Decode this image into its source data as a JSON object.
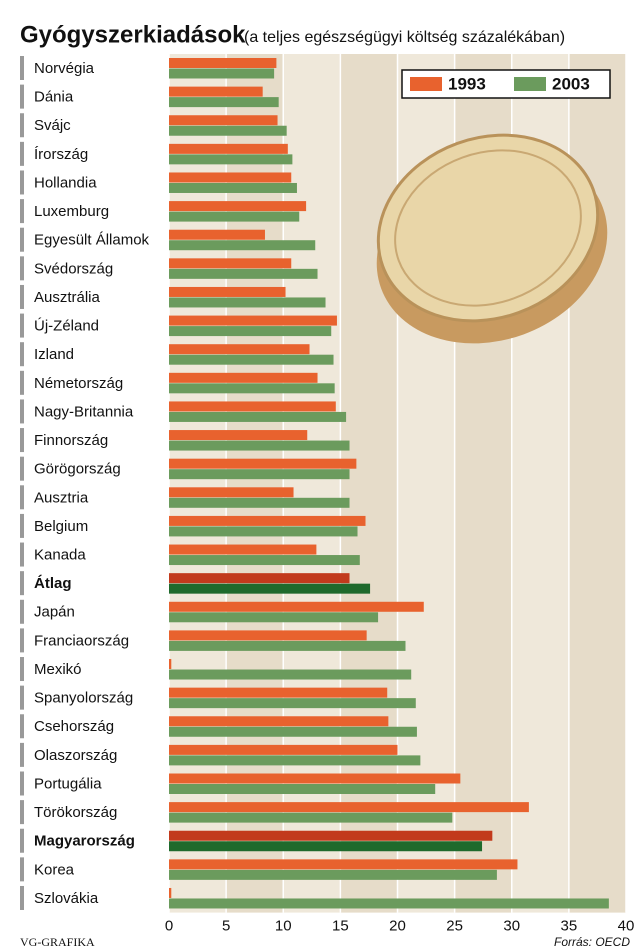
{
  "chart_data": {
    "type": "bar",
    "orientation": "horizontal",
    "title": "Gyógyszerkiadások",
    "subtitle": "(a teljes egészségügyi költség százalékában)",
    "categories": [
      "Norvégia",
      "Dánia",
      "Svájc",
      "Írország",
      "Hollandia",
      "Luxemburg",
      "Egyesült Államok",
      "Svédország",
      "Ausztrália",
      "Új-Zéland",
      "Izland",
      "Németország",
      "Nagy-Britannia",
      "Finnország",
      "Görögország",
      "Ausztria",
      "Belgium",
      "Kanada",
      "Átlag",
      "Japán",
      "Franciaország",
      "Mexikó",
      "Spanyolország",
      "Csehország",
      "Olaszország",
      "Portugália",
      "Törökország",
      "Magyarország",
      "Korea",
      "Szlovákia"
    ],
    "highlight": [
      18,
      27
    ],
    "series": [
      {
        "name": "1993",
        "color": "#e8622e",
        "highlight_color": "#c23a1c",
        "values": [
          9.4,
          8.2,
          9.5,
          10.4,
          10.7,
          12.0,
          8.4,
          10.7,
          10.2,
          14.7,
          12.3,
          13.0,
          14.6,
          12.1,
          16.4,
          10.9,
          17.2,
          12.9,
          15.8,
          22.3,
          17.3,
          0.2,
          19.1,
          19.2,
          20.0,
          25.5,
          31.5,
          28.3,
          30.5,
          0.2
        ]
      },
      {
        "name": "2003",
        "color": "#6b9b5d",
        "highlight_color": "#1f6a2c",
        "values": [
          9.2,
          9.6,
          10.3,
          10.8,
          11.2,
          11.4,
          12.8,
          13.0,
          13.7,
          14.2,
          14.4,
          14.5,
          15.5,
          15.8,
          15.8,
          15.8,
          16.5,
          16.7,
          17.6,
          18.3,
          20.7,
          21.2,
          21.6,
          21.7,
          22.0,
          23.3,
          24.8,
          27.4,
          28.7,
          38.5
        ]
      }
    ],
    "xlim": [
      0,
      40
    ],
    "xticks": [
      0,
      5,
      10,
      15,
      20,
      25,
      30,
      35,
      40
    ],
    "legend": "top-right",
    "credit": "VG-GRAFIKA",
    "source": "Forrás: OECD"
  }
}
